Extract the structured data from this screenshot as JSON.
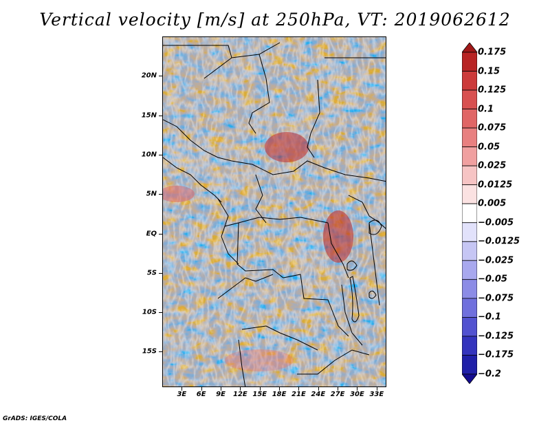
{
  "title": "Vertical velocity [m/s] at 250hPa, VT: 2019062612",
  "footer": "GrADS: IGES/COLA",
  "map": {
    "lat_labels": [
      "20N",
      "15N",
      "10N",
      "5N",
      "EQ",
      "5S",
      "10S",
      "15S"
    ],
    "lat_values": [
      20,
      15,
      10,
      5,
      0,
      -5,
      -10,
      -15
    ],
    "lon_labels": [
      "3E",
      "6E",
      "9E",
      "12E",
      "15E",
      "18E",
      "21E",
      "24E",
      "27E",
      "30E",
      "33E"
    ],
    "lon_values": [
      3,
      6,
      9,
      12,
      15,
      18,
      21,
      24,
      27,
      30,
      33
    ],
    "lon_range": [
      0,
      34.5
    ],
    "lat_range": [
      -19.5,
      25
    ]
  },
  "colorbar": {
    "labels": [
      "0.175",
      "0.15",
      "0.125",
      "0.1",
      "0.075",
      "0.05",
      "0.025",
      "0.0125",
      "0.005",
      "−0.005",
      "−0.0125",
      "−0.025",
      "−0.05",
      "−0.075",
      "−0.1",
      "−0.125",
      "−0.175",
      "−0.2"
    ],
    "colors": [
      "#a01818",
      "#b82424",
      "#cc3a3a",
      "#d85050",
      "#e06666",
      "#e88080",
      "#f0a0a0",
      "#f6c4c4",
      "#fbe2e2",
      "#ffffff",
      "#e2e2fb",
      "#c6c6f4",
      "#a8a8ee",
      "#8c8ce6",
      "#7070dd",
      "#5252d0",
      "#3434bd",
      "#2020a8",
      "#140c90"
    ]
  }
}
